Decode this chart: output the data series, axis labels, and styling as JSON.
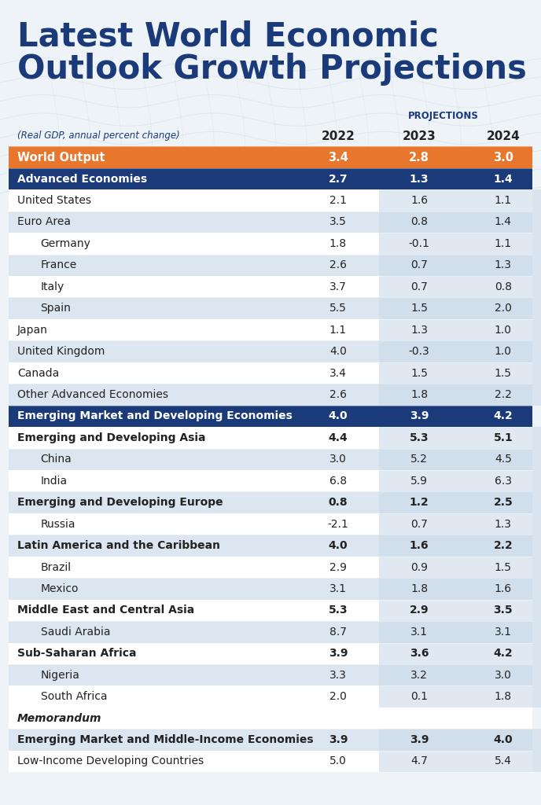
{
  "title_line1": "Latest World Economic",
  "title_line2": "Outlook Growth Projections",
  "subtitle": "(Real GDP, annual percent change)",
  "projections_label": "PROJECTIONS",
  "col_headers": [
    "2022",
    "2023",
    "2024"
  ],
  "rows": [
    {
      "label": "World Output",
      "values": [
        "3.4",
        "2.8",
        "3.0"
      ],
      "type": "world"
    },
    {
      "label": "Advanced Economies",
      "values": [
        "2.7",
        "1.3",
        "1.4"
      ],
      "type": "header_blue"
    },
    {
      "label": "United States",
      "values": [
        "2.1",
        "1.6",
        "1.1"
      ],
      "type": "normal"
    },
    {
      "label": "Euro Area",
      "values": [
        "3.5",
        "0.8",
        "1.4"
      ],
      "type": "normal"
    },
    {
      "label": "Germany",
      "values": [
        "1.8",
        "-0.1",
        "1.1"
      ],
      "type": "indent"
    },
    {
      "label": "France",
      "values": [
        "2.6",
        "0.7",
        "1.3"
      ],
      "type": "indent"
    },
    {
      "label": "Italy",
      "values": [
        "3.7",
        "0.7",
        "0.8"
      ],
      "type": "indent"
    },
    {
      "label": "Spain",
      "values": [
        "5.5",
        "1.5",
        "2.0"
      ],
      "type": "indent"
    },
    {
      "label": "Japan",
      "values": [
        "1.1",
        "1.3",
        "1.0"
      ],
      "type": "normal"
    },
    {
      "label": "United Kingdom",
      "values": [
        "4.0",
        "-0.3",
        "1.0"
      ],
      "type": "normal"
    },
    {
      "label": "Canada",
      "values": [
        "3.4",
        "1.5",
        "1.5"
      ],
      "type": "normal"
    },
    {
      "label": "Other Advanced Economies",
      "values": [
        "2.6",
        "1.8",
        "2.2"
      ],
      "type": "normal"
    },
    {
      "label": "Emerging Market and Developing Economies",
      "values": [
        "4.0",
        "3.9",
        "4.2"
      ],
      "type": "header_blue"
    },
    {
      "label": "Emerging and Developing Asia",
      "values": [
        "4.4",
        "5.3",
        "5.1"
      ],
      "type": "bold_sub"
    },
    {
      "label": "China",
      "values": [
        "3.0",
        "5.2",
        "4.5"
      ],
      "type": "indent"
    },
    {
      "label": "India",
      "values": [
        "6.8",
        "5.9",
        "6.3"
      ],
      "type": "indent"
    },
    {
      "label": "Emerging and Developing Europe",
      "values": [
        "0.8",
        "1.2",
        "2.5"
      ],
      "type": "bold_sub"
    },
    {
      "label": "Russia",
      "values": [
        "-2.1",
        "0.7",
        "1.3"
      ],
      "type": "indent"
    },
    {
      "label": "Latin America and the Caribbean",
      "values": [
        "4.0",
        "1.6",
        "2.2"
      ],
      "type": "bold_sub"
    },
    {
      "label": "Brazil",
      "values": [
        "2.9",
        "0.9",
        "1.5"
      ],
      "type": "indent"
    },
    {
      "label": "Mexico",
      "values": [
        "3.1",
        "1.8",
        "1.6"
      ],
      "type": "indent"
    },
    {
      "label": "Middle East and Central Asia",
      "values": [
        "5.3",
        "2.9",
        "3.5"
      ],
      "type": "bold_sub"
    },
    {
      "label": "Saudi Arabia",
      "values": [
        "8.7",
        "3.1",
        "3.1"
      ],
      "type": "indent"
    },
    {
      "label": "Sub-Saharan Africa",
      "values": [
        "3.9",
        "3.6",
        "4.2"
      ],
      "type": "bold_sub"
    },
    {
      "label": "Nigeria",
      "values": [
        "3.3",
        "3.2",
        "3.0"
      ],
      "type": "indent"
    },
    {
      "label": "South Africa",
      "values": [
        "2.0",
        "0.1",
        "1.8"
      ],
      "type": "indent"
    },
    {
      "label": "Memorandum",
      "values": [
        null,
        null,
        null
      ],
      "type": "memo_header"
    },
    {
      "label": "Emerging Market and Middle-Income Economies",
      "values": [
        "3.9",
        "3.9",
        "4.0"
      ],
      "type": "bold_sub"
    },
    {
      "label": "Low-Income Developing Countries",
      "values": [
        "5.0",
        "4.7",
        "5.4"
      ],
      "type": "normal"
    }
  ],
  "color_orange": "#E8762D",
  "color_blue_dark": "#1A3A7A",
  "color_proj_bg": "#C8D8E8",
  "color_row_white": "#FFFFFF",
  "color_row_light": "#DCE6F0",
  "color_text_dark": "#222222",
  "color_white": "#FFFFFF",
  "bg_color": "#EEF3F8",
  "title_color": "#1A3A7A",
  "proj_label_color": "#1A3A7A"
}
